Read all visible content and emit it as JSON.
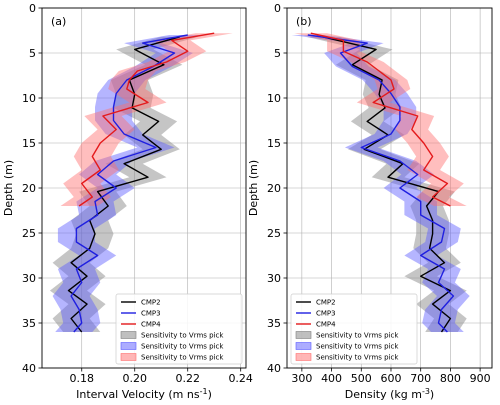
{
  "colors": {
    "CMP2": "#000000",
    "CMP3": "#1f1fe0",
    "CMP4": "#e41a1c",
    "band_CMP2": "#7f7f7f",
    "band_CMP3": "#5a5aff",
    "band_CMP4": "#ff6e6e",
    "grid": "#b0b0b0"
  },
  "chart_data": [
    {
      "type": "line",
      "orientation": "profile (value on x, depth on y, depth increasing downward)",
      "panel_label": "(a)",
      "xlabel_main": "Interval Velocity (m ns",
      "xlabel_sup": "-1",
      "xlabel_end": ")",
      "ylabel": "Depth (m)",
      "xlim": [
        0.165,
        0.242
      ],
      "ylim": [
        0,
        40
      ],
      "xticks": [
        0.18,
        0.2,
        0.22,
        0.24
      ],
      "xtick_labels": [
        "0.18",
        "0.20",
        "0.22",
        "0.24"
      ],
      "yticks": [
        0,
        5,
        10,
        15,
        20,
        25,
        30,
        35,
        40
      ],
      "ytick_labels": [
        "0",
        "5",
        "10",
        "15",
        "20",
        "25",
        "30",
        "35",
        "40"
      ],
      "grid": true,
      "legend_position": "lower-right",
      "legend": [
        "CMP2",
        "CMP3",
        "CMP4",
        "Sensitivity to Vrms pick",
        "Sensitivity to Vrms pick",
        "Sensitivity to Vrms pick"
      ],
      "series": [
        {
          "name": "CMP2",
          "depth": [
            3.2,
            4.6,
            6.3,
            8,
            9.6,
            11.1,
            12.6,
            14.1,
            15.7,
            17.3,
            18.8,
            20.4,
            22,
            23.6,
            25.1,
            26.7,
            28.3,
            29.8,
            31.4,
            32.9,
            34.5,
            36
          ],
          "values": [
            0.217,
            0.2,
            0.211,
            0.198,
            0.2,
            0.199,
            0.209,
            0.203,
            0.21,
            0.196,
            0.205,
            0.186,
            0.19,
            0.183,
            0.185,
            0.183,
            0.176,
            0.182,
            0.175,
            0.182,
            0.176,
            0.18
          ],
          "band_halfwidth": 0.007
        },
        {
          "name": "CMP3",
          "depth": [
            3,
            3.9,
            5,
            6.5,
            8,
            9.5,
            11,
            12.5,
            14,
            15.5,
            17,
            18.5,
            20,
            21.5,
            23,
            24.5,
            26,
            27.5,
            29,
            30.5,
            32,
            33.5,
            35,
            36
          ],
          "values": [
            0.22,
            0.203,
            0.215,
            0.207,
            0.197,
            0.193,
            0.192,
            0.192,
            0.196,
            0.208,
            0.192,
            0.186,
            0.193,
            0.185,
            0.186,
            0.178,
            0.178,
            0.186,
            0.178,
            0.18,
            0.176,
            0.179,
            0.18,
            0.177
          ],
          "band_halfwidth": 0.007
        },
        {
          "name": "CMP4",
          "depth": [
            2.8,
            3.6,
            4.8,
            6,
            7,
            8,
            9,
            10.5,
            12,
            13.5,
            15,
            16.5,
            18,
            19.5,
            21,
            22
          ],
          "values": [
            0.23,
            0.214,
            0.22,
            0.212,
            0.201,
            0.198,
            0.197,
            0.205,
            0.188,
            0.193,
            0.187,
            0.184,
            0.187,
            0.18,
            0.184,
            0.179
          ],
          "band_halfwidth": 0.007
        }
      ]
    },
    {
      "type": "line",
      "orientation": "profile (value on x, depth on y, depth increasing downward)",
      "panel_label": "(b)",
      "xlabel_main": "Density (kg m",
      "xlabel_sup": "-3",
      "xlabel_end": ")",
      "ylabel": "Depth (m)",
      "xlim": [
        250,
        940
      ],
      "ylim": [
        0,
        40
      ],
      "xticks": [
        300,
        400,
        500,
        600,
        700,
        800,
        900
      ],
      "xtick_labels": [
        "300",
        "400",
        "500",
        "600",
        "700",
        "800",
        "900"
      ],
      "yticks": [
        0,
        5,
        10,
        15,
        20,
        25,
        30,
        35,
        40
      ],
      "ytick_labels": [
        "0",
        "5",
        "10",
        "15",
        "20",
        "25",
        "30",
        "35",
        "40"
      ],
      "grid": true,
      "legend_position": "lower-left",
      "legend": [
        "CMP2",
        "CMP3",
        "CMP4",
        "Sensitivity to Vrms pick",
        "Sensitivity to Vrms pick",
        "Sensitivity to Vrms pick"
      ],
      "series": [
        {
          "name": "CMP2",
          "depth": [
            3.2,
            4.6,
            6.3,
            8,
            9.6,
            11.1,
            12.6,
            14.1,
            15.7,
            17.3,
            18.8,
            20.4,
            22,
            23.6,
            25.1,
            26.7,
            28.3,
            29.8,
            31.4,
            32.9,
            34.5,
            36
          ],
          "values": [
            370,
            550,
            470,
            570,
            560,
            580,
            520,
            590,
            510,
            640,
            590,
            760,
            720,
            740,
            740,
            730,
            780,
            700,
            800,
            740,
            800,
            770
          ],
          "band_halfwidth": 55
        },
        {
          "name": "CMP3",
          "depth": [
            3,
            3.9,
            5,
            6.5,
            8,
            9.5,
            11,
            12.5,
            14,
            15.5,
            17,
            18.5,
            20,
            21.5,
            23,
            24.5,
            26,
            27.5,
            29,
            30.5,
            32,
            33.5,
            35,
            36
          ],
          "values": [
            320,
            520,
            430,
            470,
            560,
            600,
            630,
            630,
            600,
            500,
            630,
            690,
            630,
            700,
            700,
            780,
            770,
            700,
            780,
            760,
            810,
            770,
            760,
            790
          ],
          "band_halfwidth": 55
        },
        {
          "name": "CMP4",
          "depth": [
            2.8,
            3.6,
            4.8,
            6,
            7,
            8,
            9,
            10.5,
            12,
            13.5,
            15,
            16.5,
            18,
            19.5,
            21,
            22
          ],
          "values": [
            330,
            440,
            440,
            520,
            560,
            600,
            610,
            540,
            690,
            670,
            710,
            740,
            710,
            790,
            740,
            800
          ],
          "band_halfwidth": 55
        }
      ]
    }
  ]
}
